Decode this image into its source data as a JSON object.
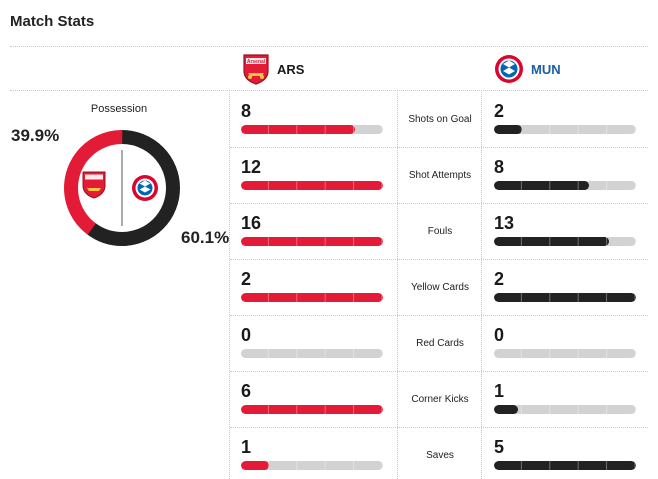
{
  "header": {
    "title": "Match Stats"
  },
  "teams": {
    "home": {
      "abbr": "ARS",
      "crest_label": "Arsenal",
      "color": "#e31b36"
    },
    "away": {
      "abbr": "MUN",
      "crest_label": "FC BAYERN MÜNCHEN",
      "color": "#222222",
      "abbr_color": "#1a5ea8"
    }
  },
  "possession": {
    "label": "Possession",
    "home": "39.9%",
    "away": "60.1%",
    "home_value": 39.9,
    "away_value": 60.1
  },
  "stats": [
    {
      "label": "Shots on Goal",
      "home": "8",
      "away": "2",
      "home_fill": 0.8,
      "away_fill": 0.2
    },
    {
      "label": "Shot Attempts",
      "home": "12",
      "away": "8",
      "home_fill": 1.0,
      "away_fill": 0.67
    },
    {
      "label": "Fouls",
      "home": "16",
      "away": "13",
      "home_fill": 1.0,
      "away_fill": 0.81
    },
    {
      "label": "Yellow Cards",
      "home": "2",
      "away": "2",
      "home_fill": 1.0,
      "away_fill": 1.0
    },
    {
      "label": "Red Cards",
      "home": "0",
      "away": "0",
      "home_fill": 0.0,
      "away_fill": 0.0
    },
    {
      "label": "Corner Kicks",
      "home": "6",
      "away": "1",
      "home_fill": 1.0,
      "away_fill": 0.17
    },
    {
      "label": "Saves",
      "home": "1",
      "away": "5",
      "home_fill": 0.2,
      "away_fill": 1.0
    }
  ]
}
